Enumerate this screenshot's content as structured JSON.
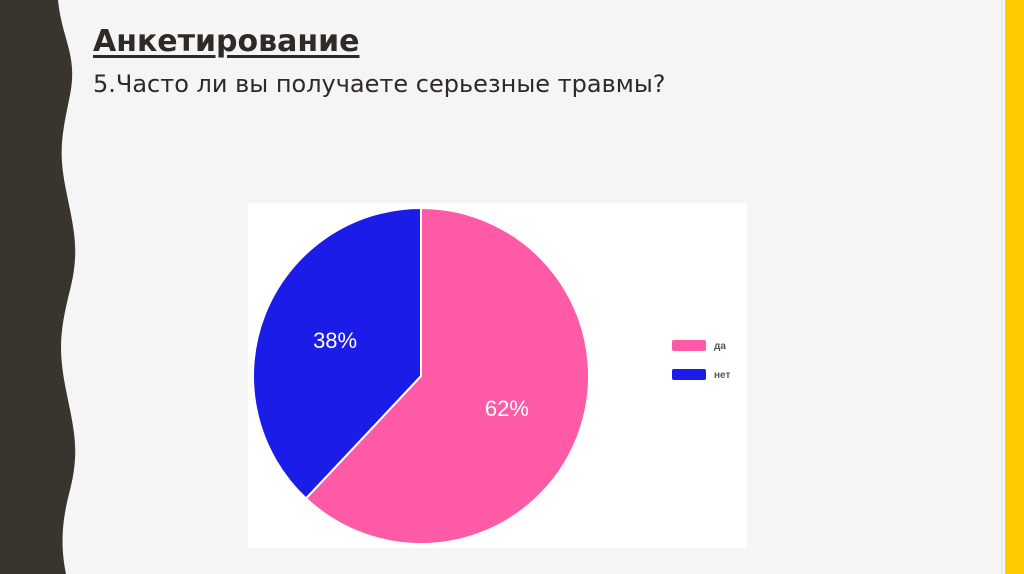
{
  "slide": {
    "title": "Анкетирование",
    "question": "5.Часто ли вы получаете серьезные травмы?"
  },
  "colors": {
    "background": "#f6f5f5",
    "border_dark": "#3a342f",
    "accent_yellow": "#ffcc00"
  },
  "chart_data": {
    "type": "pie",
    "categories": [
      "да",
      "нет"
    ],
    "values": [
      62,
      38
    ],
    "data_labels": [
      "62%",
      "38%"
    ],
    "colors": [
      "#ff5aa5",
      "#1c1ce8"
    ],
    "legend_position": "right",
    "start_angle": "top",
    "direction": "clockwise"
  }
}
